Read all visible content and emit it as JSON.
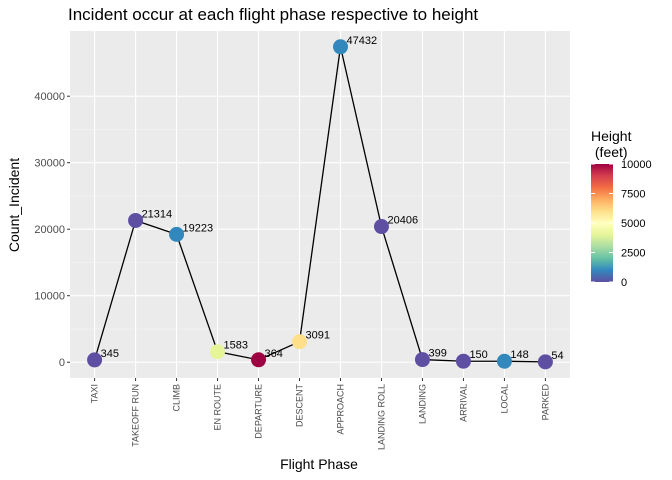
{
  "chart_data": {
    "type": "line",
    "title": "Incident occur at each flight phase respective to height",
    "xlabel": "Flight Phase",
    "ylabel": "Count_Incident",
    "categories": [
      "TAXI",
      "TAKEOFF RUN",
      "CLIMB",
      "EN ROUTE",
      "DEPARTURE",
      "DESCENT",
      "APPROACH",
      "LANDING ROLL",
      "LANDING",
      "ARRIVAL",
      "LOCAL",
      "PARKED"
    ],
    "values": [
      345,
      21314,
      19223,
      1583,
      364,
      3091,
      47432,
      20406,
      399,
      150,
      148,
      54
    ],
    "data_labels": [
      "345",
      "21314",
      "19223",
      "1583",
      "364",
      "3091",
      "47432",
      "20406",
      "399",
      "150",
      "148",
      "54"
    ],
    "point_colors": [
      "#5E4FA2",
      "#5E4FA2",
      "#3288BD",
      "#E6F598",
      "#9E0142",
      "#FEE08B",
      "#3288BD",
      "#5E4FA2",
      "#5E4FA2",
      "#5E4FA2",
      "#3288BD",
      "#5E4FA2"
    ],
    "y_ticks": [
      0,
      10000,
      20000,
      30000,
      40000
    ],
    "y_tick_labels": [
      "0",
      "10000",
      "20000",
      "30000",
      "40000"
    ],
    "ylim": [
      -2371.6,
      49803.6
    ],
    "grid": true,
    "legend": {
      "title_lines": [
        "Height",
        " (feet)"
      ],
      "position": "right",
      "range": [
        0,
        10000
      ],
      "ticks": [
        0,
        2500,
        5000,
        7500,
        10000
      ],
      "tick_labels": [
        "0",
        "2500",
        "5000",
        "7500",
        "10000"
      ],
      "colors": [
        "#5E4FA2",
        "#3288BD",
        "#66C2A5",
        "#ABDDA4",
        "#E6F598",
        "#FFFFBF",
        "#FEE08B",
        "#FDAE61",
        "#F46D43",
        "#D53E4F",
        "#9E0142"
      ]
    },
    "colors": {
      "panel_bg": "#EBEBEB",
      "grid_major": "#FFFFFF",
      "line": "#000000"
    }
  }
}
